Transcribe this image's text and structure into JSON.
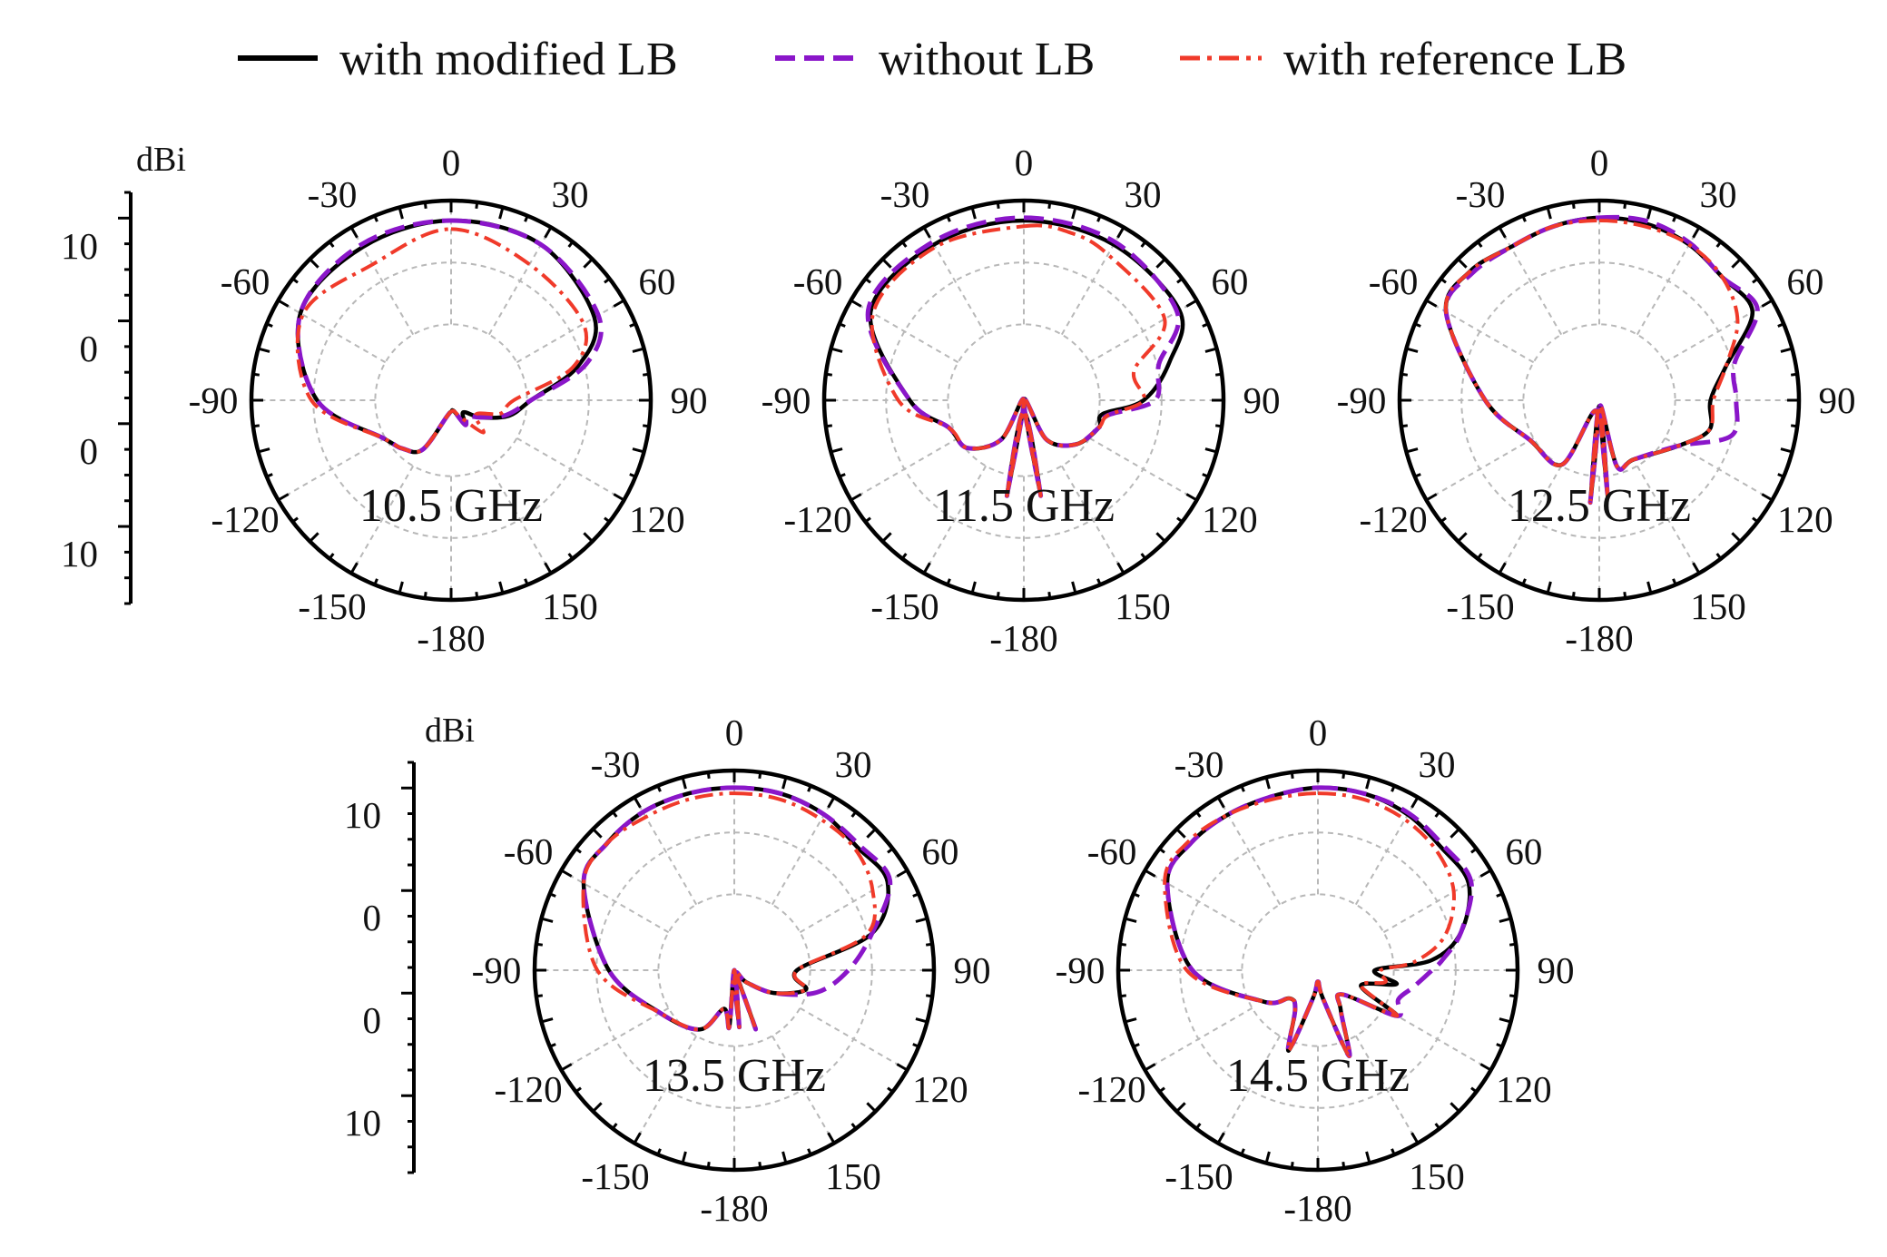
{
  "chart_data": {
    "type": "polar-line",
    "legend": {
      "placement": "top",
      "entries": [
        {
          "key": "modified",
          "label": "with modified LB",
          "color": "#000000",
          "style": "solid"
        },
        {
          "key": "without",
          "label": "without LB",
          "color": "#8a16c9",
          "style": "dashed"
        },
        {
          "key": "reference",
          "label": "with reference LB",
          "color": "#f03a2a",
          "style": "dash-dot"
        }
      ]
    },
    "angle_ticks": [
      "0",
      "30",
      "60",
      "90",
      "120",
      "150",
      "-180",
      "-150",
      "-120",
      "-90",
      "-60",
      "-30"
    ],
    "angle_tick_values": [
      0,
      30,
      60,
      90,
      120,
      150,
      180,
      -150,
      -120,
      -90,
      -60,
      -30
    ],
    "radial_scale": {
      "unit": "dBi",
      "tick_labels": [
        "10",
        "0",
        "0",
        "10"
      ],
      "r_min": -20,
      "r_max": 15
    },
    "panels": [
      {
        "freq_label": "10.5 GHz",
        "series": [
          {
            "name": "with modified LB",
            "key": "modified",
            "theta": [
              0,
              30,
              60,
              75,
              90,
              105,
              120,
              135,
              150,
              165,
              180,
              -165,
              -150,
              -135,
              -120,
              -90,
              -60,
              -30
            ],
            "gain": [
              11.5,
              11.5,
              9,
              3,
              -6,
              -9.5,
              -14,
              -17,
              -15,
              -18,
              -18,
              -17,
              -10,
              -8,
              -6.5,
              3.5,
              10.5,
              11
            ],
            "closed": true
          },
          {
            "name": "without LB",
            "key": "without",
            "theta": [
              0,
              30,
              60,
              75,
              90,
              105,
              120,
              135,
              150,
              165,
              180,
              -165,
              -150,
              -135,
              -120,
              -90,
              -60,
              -30
            ],
            "gain": [
              11.5,
              11.5,
              9.8,
              4.5,
              -6,
              -10,
              -14,
              -16,
              -15,
              -18,
              -18,
              -17,
              -10,
              -8,
              -6.5,
              3.5,
              10.5,
              11.5
            ],
            "closed": true
          },
          {
            "name": "with reference LB",
            "key": "reference",
            "theta": [
              0,
              30,
              60,
              75,
              90,
              105,
              120,
              135,
              150,
              165,
              180,
              -165,
              -150,
              -135,
              -120,
              -90,
              -60,
              -30
            ],
            "gain": [
              10,
              7.5,
              6.8,
              2,
              -9,
              -11,
              -15,
              -12,
              -16.5,
              -18,
              -18,
              -17,
              -10,
              -8,
              -6.5,
              4.5,
              10,
              7.5
            ],
            "closed": true
          }
        ]
      },
      {
        "freq_label": "11.5 GHz",
        "series": [
          {
            "name": "with modified LB",
            "key": "modified",
            "theta": [
              0,
              30,
              60,
              75,
              90,
              100,
              110,
              130,
              150,
              165,
              170,
              180,
              -170,
              -165,
              -150,
              -130,
              -110,
              -90,
              -60,
              -30
            ],
            "gain": [
              11.5,
              11.5,
              11.5,
              6.5,
              1,
              -6,
              -6,
              -8,
              -12,
              -20,
              -3,
              -18,
              -3,
              -20,
              -12,
              -7,
              -6,
              0,
              11,
              11.5
            ],
            "closed": true
          },
          {
            "name": "without LB",
            "key": "without",
            "theta": [
              0,
              30,
              60,
              75,
              90,
              100,
              110,
              130,
              150,
              165,
              170,
              180,
              -170,
              -165,
              -150,
              -130,
              -110,
              -90,
              -60,
              -30
            ],
            "gain": [
              12,
              12,
              11,
              4.5,
              3,
              -5,
              -6,
              -8,
              -12,
              -20,
              -3,
              -18,
              -3,
              -20,
              -12,
              -7,
              -6,
              0,
              11.5,
              12
            ],
            "closed": true
          },
          {
            "name": "with reference LB",
            "key": "reference",
            "theta": [
              0,
              15,
              30,
              60,
              75,
              90,
              100,
              110,
              130,
              150,
              165,
              170,
              180,
              -170,
              -165,
              -150,
              -130,
              -110,
              -90,
              -60,
              -30
            ],
            "gain": [
              10.5,
              10.5,
              9.5,
              8.5,
              0,
              1,
              -5,
              -6,
              -8,
              -12,
              -20,
              -3,
              -18,
              -3,
              -20,
              -12,
              -7,
              -6,
              2,
              10.5,
              11
            ],
            "closed": true
          }
        ]
      },
      {
        "freq_label": "12.5 GHz",
        "series": [
          {
            "name": "with modified LB",
            "key": "modified",
            "theta": [
              0,
              15,
              30,
              45,
              60,
              75,
              90,
              105,
              120,
              150,
              165,
              170,
              175,
              180,
              -175,
              -165,
              -150,
              -120,
              -90,
              -60,
              -45,
              -30,
              -15
            ],
            "gain": [
              12,
              12,
              11.5,
              10.5,
              11,
              3,
              -0.5,
              0,
              -4,
              -8,
              -8,
              -19,
              -3,
              -19,
              -2,
              -18,
              -7,
              -6,
              0,
              11,
              12,
              11,
              11.5
            ],
            "closed": true
          },
          {
            "name": "without LB",
            "key": "without",
            "theta": [
              0,
              15,
              30,
              45,
              60,
              75,
              90,
              105,
              120,
              150,
              165,
              170,
              175,
              180,
              -175,
              -165,
              -150,
              -120,
              -90,
              -60,
              -45,
              -30,
              -15
            ],
            "gain": [
              12,
              12.5,
              11.8,
              10.5,
              12,
              4.5,
              4,
              4,
              -4,
              -8,
              -8,
              -19,
              -3,
              -19,
              -2,
              -18,
              -7,
              -6,
              0,
              11,
              11.5,
              11,
              11.5
            ],
            "closed": true
          },
          {
            "name": "with reference LB",
            "key": "reference",
            "theta": [
              0,
              15,
              30,
              45,
              60,
              75,
              90,
              105,
              120,
              150,
              165,
              170,
              175,
              180,
              -175,
              -165,
              -150,
              -120,
              -90,
              -60,
              -45,
              -30,
              -15
            ],
            "gain": [
              11.5,
              11.5,
              11.5,
              10.5,
              8,
              3,
              0,
              0,
              -4,
              -8,
              -8,
              -19,
              -3,
              -19,
              -2,
              -18,
              -7,
              -6,
              0,
              11,
              12,
              11,
              11.5
            ],
            "closed": true
          }
        ]
      },
      {
        "freq_label": "13.5 GHz",
        "series": [
          {
            "name": "with modified LB",
            "key": "modified",
            "theta": [
              0,
              15,
              30,
              45,
              60,
              75,
              90,
              105,
              120,
              135,
              150,
              160,
              170,
              175,
              180,
              -175,
              -165,
              -150,
              -120,
              -90,
              -60,
              -45,
              -30,
              -15
            ],
            "gain": [
              12,
              12,
              11.5,
              10.5,
              11,
              5,
              -9,
              -7,
              -12,
              -17,
              -19,
              -9,
              -19,
              -10,
              -20,
              -10,
              -13,
              -8,
              -5,
              2,
              10.5,
              11.5,
              12,
              12
            ],
            "closed": true
          },
          {
            "name": "without LB",
            "key": "without",
            "theta": [
              0,
              15,
              30,
              45,
              60,
              75,
              90,
              105,
              120,
              135,
              150,
              160,
              170,
              175,
              180,
              -175,
              -165,
              -150,
              -120,
              -90,
              -60,
              -45,
              -30,
              -15
            ],
            "gain": [
              12,
              12,
              11.5,
              11,
              11.5,
              5,
              0,
              -5,
              -12,
              -17,
              -19,
              -9,
              -19,
              -10,
              -20,
              -10,
              -13,
              -8,
              -5,
              2,
              10.5,
              11.5,
              12,
              12
            ],
            "closed": true
          },
          {
            "name": "with reference LB",
            "key": "reference",
            "theta": [
              0,
              15,
              30,
              45,
              60,
              75,
              90,
              105,
              120,
              135,
              150,
              160,
              170,
              175,
              180,
              -175,
              -165,
              -150,
              -120,
              -90,
              -60,
              -45,
              -30,
              -15
            ],
            "gain": [
              11,
              11,
              10.5,
              10,
              8,
              4,
              -9,
              -7,
              -12,
              -17,
              -19,
              -9,
              -19,
              -10,
              -20,
              -10,
              -13,
              -8,
              -5,
              4,
              10.5,
              11.5,
              11,
              11
            ],
            "closed": true
          }
        ]
      },
      {
        "freq_label": "14.5 GHz",
        "series": [
          {
            "name": "with modified LB",
            "key": "modified",
            "theta": [
              0,
              15,
              30,
              45,
              60,
              75,
              85,
              90,
              100,
              110,
              120,
              135,
              150,
              160,
              170,
              180,
              -170,
              -160,
              -150,
              -135,
              -120,
              -90,
              -60,
              -45,
              -30,
              -15
            ],
            "gain": [
              12,
              12,
              11.5,
              10.5,
              10.5,
              6,
              0,
              -10,
              -6,
              -12,
              -4,
              -14,
              -12,
              -4,
              -15,
              -18,
              -15,
              -5,
              -12,
              -13,
              -9,
              2,
              10.5,
              11.5,
              11.5,
              11.5
            ],
            "closed": true
          },
          {
            "name": "without LB",
            "key": "without",
            "theta": [
              0,
              15,
              30,
              45,
              60,
              75,
              85,
              90,
              100,
              110,
              120,
              135,
              150,
              160,
              170,
              180,
              -170,
              -160,
              -150,
              -135,
              -120,
              -90,
              -60,
              -45,
              -30,
              -15
            ],
            "gain": [
              12,
              12,
              11.8,
              11,
              11,
              6,
              2,
              0,
              -3,
              -5,
              -4,
              -14,
              -12,
              -4,
              -15,
              -18,
              -15,
              -5,
              -12,
              -13,
              -9,
              2,
              10.5,
              11.5,
              11.5,
              11.5
            ],
            "closed": true
          },
          {
            "name": "with reference LB",
            "key": "reference",
            "theta": [
              0,
              15,
              30,
              45,
              60,
              75,
              85,
              90,
              100,
              110,
              120,
              135,
              150,
              160,
              170,
              180,
              -170,
              -160,
              -150,
              -135,
              -120,
              -90,
              -60,
              -45,
              -30,
              -15
            ],
            "gain": [
              11,
              11,
              10.5,
              9.5,
              7.5,
              3,
              -3,
              -9,
              -8,
              -12,
              -4,
              -14,
              -12,
              -4,
              -15,
              -18,
              -15,
              -5,
              -12,
              -13,
              -9,
              3,
              11,
              12,
              11.5,
              11
            ],
            "closed": true
          }
        ]
      }
    ]
  }
}
